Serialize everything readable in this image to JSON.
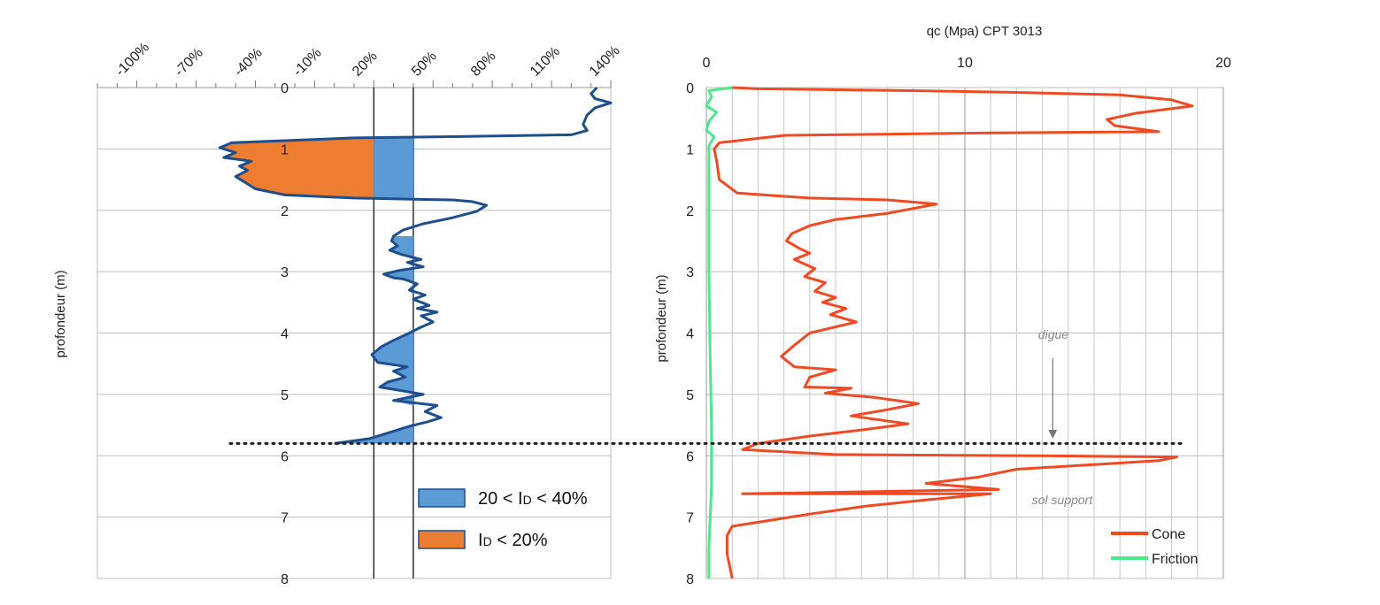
{
  "chart_data": [
    {
      "type": "line",
      "chart": "density-index-profile",
      "xlabel": "",
      "ylabel": "profondeur (m)",
      "x_tick_labels": [
        "-100%",
        "-70%",
        "-40%",
        "-10%",
        "20%",
        "50%",
        "80%",
        "110%",
        "140%"
      ],
      "y_tick_labels": [
        "0",
        "1",
        "2",
        "3",
        "4",
        "5",
        "6",
        "7",
        "8"
      ],
      "xlim": [
        -120,
        140
      ],
      "ylim": [
        0,
        8
      ],
      "y_reversed": true,
      "grid": true,
      "reference_lines_x": [
        20,
        40
      ],
      "depth_marker_m": 5.8,
      "series": [
        {
          "color": "#1f4e8c",
          "points": [
            [
              133,
              0.0
            ],
            [
              130,
              0.1
            ],
            [
              132,
              0.18
            ],
            [
              140,
              0.25
            ],
            [
              132,
              0.33
            ],
            [
              128,
              0.45
            ],
            [
              126,
              0.6
            ],
            [
              128,
              0.7
            ],
            [
              120,
              0.77
            ],
            [
              60,
              0.8
            ],
            [
              10,
              0.82
            ],
            [
              -52,
              0.9
            ],
            [
              -58,
              0.98
            ],
            [
              -50,
              1.06
            ],
            [
              -56,
              1.14
            ],
            [
              -42,
              1.2
            ],
            [
              -48,
              1.28
            ],
            [
              -44,
              1.35
            ],
            [
              -50,
              1.45
            ],
            [
              -45,
              1.55
            ],
            [
              -40,
              1.65
            ],
            [
              -25,
              1.75
            ],
            [
              10,
              1.8
            ],
            [
              40,
              1.82
            ],
            [
              60,
              1.83
            ],
            [
              70,
              1.86
            ],
            [
              77,
              1.92
            ],
            [
              72,
              2.02
            ],
            [
              60,
              2.12
            ],
            [
              45,
              2.22
            ],
            [
              35,
              2.32
            ],
            [
              30,
              2.42
            ],
            [
              29,
              2.5
            ],
            [
              32,
              2.58
            ],
            [
              28,
              2.65
            ],
            [
              34,
              2.72
            ],
            [
              44,
              2.8
            ],
            [
              37,
              2.85
            ],
            [
              45,
              2.92
            ],
            [
              33,
              2.98
            ],
            [
              25,
              3.04
            ],
            [
              30,
              3.1
            ],
            [
              35,
              3.12
            ],
            [
              42,
              3.2
            ],
            [
              38,
              3.3
            ],
            [
              46,
              3.38
            ],
            [
              40,
              3.45
            ],
            [
              48,
              3.55
            ],
            [
              42,
              3.6
            ],
            [
              52,
              3.66
            ],
            [
              44,
              3.72
            ],
            [
              50,
              3.82
            ],
            [
              43,
              3.92
            ],
            [
              38,
              4.0
            ],
            [
              30,
              4.12
            ],
            [
              24,
              4.22
            ],
            [
              19,
              4.35
            ],
            [
              22,
              4.48
            ],
            [
              37,
              4.55
            ],
            [
              30,
              4.62
            ],
            [
              36,
              4.72
            ],
            [
              27,
              4.8
            ],
            [
              23,
              4.88
            ],
            [
              34,
              4.94
            ],
            [
              45,
              5.0
            ],
            [
              30,
              5.1
            ],
            [
              52,
              5.18
            ],
            [
              46,
              5.28
            ],
            [
              54,
              5.38
            ],
            [
              47,
              5.45
            ],
            [
              38,
              5.52
            ],
            [
              28,
              5.62
            ],
            [
              18,
              5.72
            ],
            [
              0,
              5.8
            ]
          ]
        }
      ],
      "fills": [
        {
          "label": "20 < ID < 40%",
          "color": "#5b9bd5",
          "from_x": 20,
          "to_x": 40
        },
        {
          "label": "ID < 20%",
          "color": "#ed7d31",
          "to_x": 20
        }
      ],
      "legend": [
        {
          "main_a": "20 < I",
          "sub": "D",
          "main_b": " < 40%",
          "color": "#5b9bd5"
        },
        {
          "main_a": "I",
          "sub": "D",
          "main_b": " < 20%",
          "color": "#ed7d31"
        }
      ]
    },
    {
      "type": "line",
      "chart": "cpt",
      "title": "qc (Mpa) CPT 3013",
      "xlabel": "",
      "ylabel": "profondeur (m)",
      "x_tick_labels": [
        "0",
        "10",
        "20"
      ],
      "y_tick_labels": [
        "0",
        "1",
        "2",
        "3",
        "4",
        "5",
        "6",
        "7",
        "8"
      ],
      "xlim": [
        0,
        20
      ],
      "ylim": [
        0,
        8
      ],
      "y_reversed": true,
      "grid": true,
      "legend_position": "bottom-right",
      "series": [
        {
          "name": "Cone",
          "color": "#ef4a23",
          "points": [
            [
              1.0,
              0.0
            ],
            [
              2.0,
              0.02
            ],
            [
              8.0,
              0.05
            ],
            [
              12.0,
              0.08
            ],
            [
              16.0,
              0.12
            ],
            [
              18.0,
              0.2
            ],
            [
              18.8,
              0.3
            ],
            [
              16.6,
              0.42
            ],
            [
              15.5,
              0.52
            ],
            [
              15.8,
              0.62
            ],
            [
              17.5,
              0.72
            ],
            [
              11.0,
              0.74
            ],
            [
              3.0,
              0.78
            ],
            [
              0.5,
              0.9
            ],
            [
              0.3,
              1.0
            ],
            [
              0.4,
              1.2
            ],
            [
              0.5,
              1.5
            ],
            [
              1.2,
              1.72
            ],
            [
              4.0,
              1.8
            ],
            [
              7.0,
              1.83
            ],
            [
              8.9,
              1.9
            ],
            [
              7.0,
              2.05
            ],
            [
              5.0,
              2.15
            ],
            [
              4.0,
              2.25
            ],
            [
              3.3,
              2.38
            ],
            [
              3.1,
              2.5
            ],
            [
              3.6,
              2.62
            ],
            [
              4.0,
              2.7
            ],
            [
              3.4,
              2.8
            ],
            [
              4.2,
              2.95
            ],
            [
              3.8,
              3.08
            ],
            [
              4.6,
              3.18
            ],
            [
              4.2,
              3.32
            ],
            [
              5.0,
              3.42
            ],
            [
              4.5,
              3.5
            ],
            [
              5.4,
              3.6
            ],
            [
              4.8,
              3.7
            ],
            [
              5.8,
              3.82
            ],
            [
              4.8,
              3.92
            ],
            [
              4.0,
              4.0
            ],
            [
              3.4,
              4.2
            ],
            [
              2.9,
              4.38
            ],
            [
              3.4,
              4.55
            ],
            [
              5.0,
              4.6
            ],
            [
              4.0,
              4.72
            ],
            [
              3.8,
              4.88
            ],
            [
              5.6,
              4.9
            ],
            [
              4.6,
              4.98
            ],
            [
              6.5,
              5.05
            ],
            [
              8.2,
              5.15
            ],
            [
              7.0,
              5.25
            ],
            [
              5.6,
              5.35
            ],
            [
              7.8,
              5.48
            ],
            [
              6.0,
              5.58
            ],
            [
              4.0,
              5.68
            ],
            [
              2.0,
              5.8
            ],
            [
              1.4,
              5.9
            ],
            [
              5.0,
              5.98
            ],
            [
              13.0,
              6.0
            ],
            [
              18.2,
              6.02
            ],
            [
              17.5,
              6.08
            ],
            [
              12.0,
              6.22
            ],
            [
              10.5,
              6.35
            ],
            [
              8.5,
              6.45
            ],
            [
              11.3,
              6.55
            ],
            [
              1.4,
              6.62
            ],
            [
              11.0,
              6.62
            ],
            [
              8.5,
              6.72
            ],
            [
              6.2,
              6.82
            ],
            [
              4.0,
              6.95
            ],
            [
              2.5,
              7.05
            ],
            [
              1.0,
              7.15
            ],
            [
              0.8,
              7.3
            ],
            [
              0.8,
              7.6
            ],
            [
              0.9,
              7.8
            ],
            [
              1.0,
              8.0
            ]
          ]
        },
        {
          "name": "Friction",
          "color": "#4de88c",
          "points": [
            [
              1.0,
              0.0
            ],
            [
              0.1,
              0.05
            ],
            [
              0.2,
              0.15
            ],
            [
              0.0,
              0.3
            ],
            [
              0.4,
              0.4
            ],
            [
              0.1,
              0.55
            ],
            [
              0.0,
              0.7
            ],
            [
              0.3,
              0.8
            ],
            [
              0.1,
              0.95
            ],
            [
              0.1,
              1.6
            ],
            [
              0.1,
              3.0
            ],
            [
              0.15,
              4.5
            ],
            [
              0.2,
              5.5
            ],
            [
              0.2,
              6.5
            ],
            [
              0.1,
              7.5
            ],
            [
              0.1,
              8.0
            ]
          ]
        }
      ],
      "annotations": [
        "digue",
        "sol support"
      ],
      "annotation_arrow_x_mpa": 13.4
    }
  ]
}
